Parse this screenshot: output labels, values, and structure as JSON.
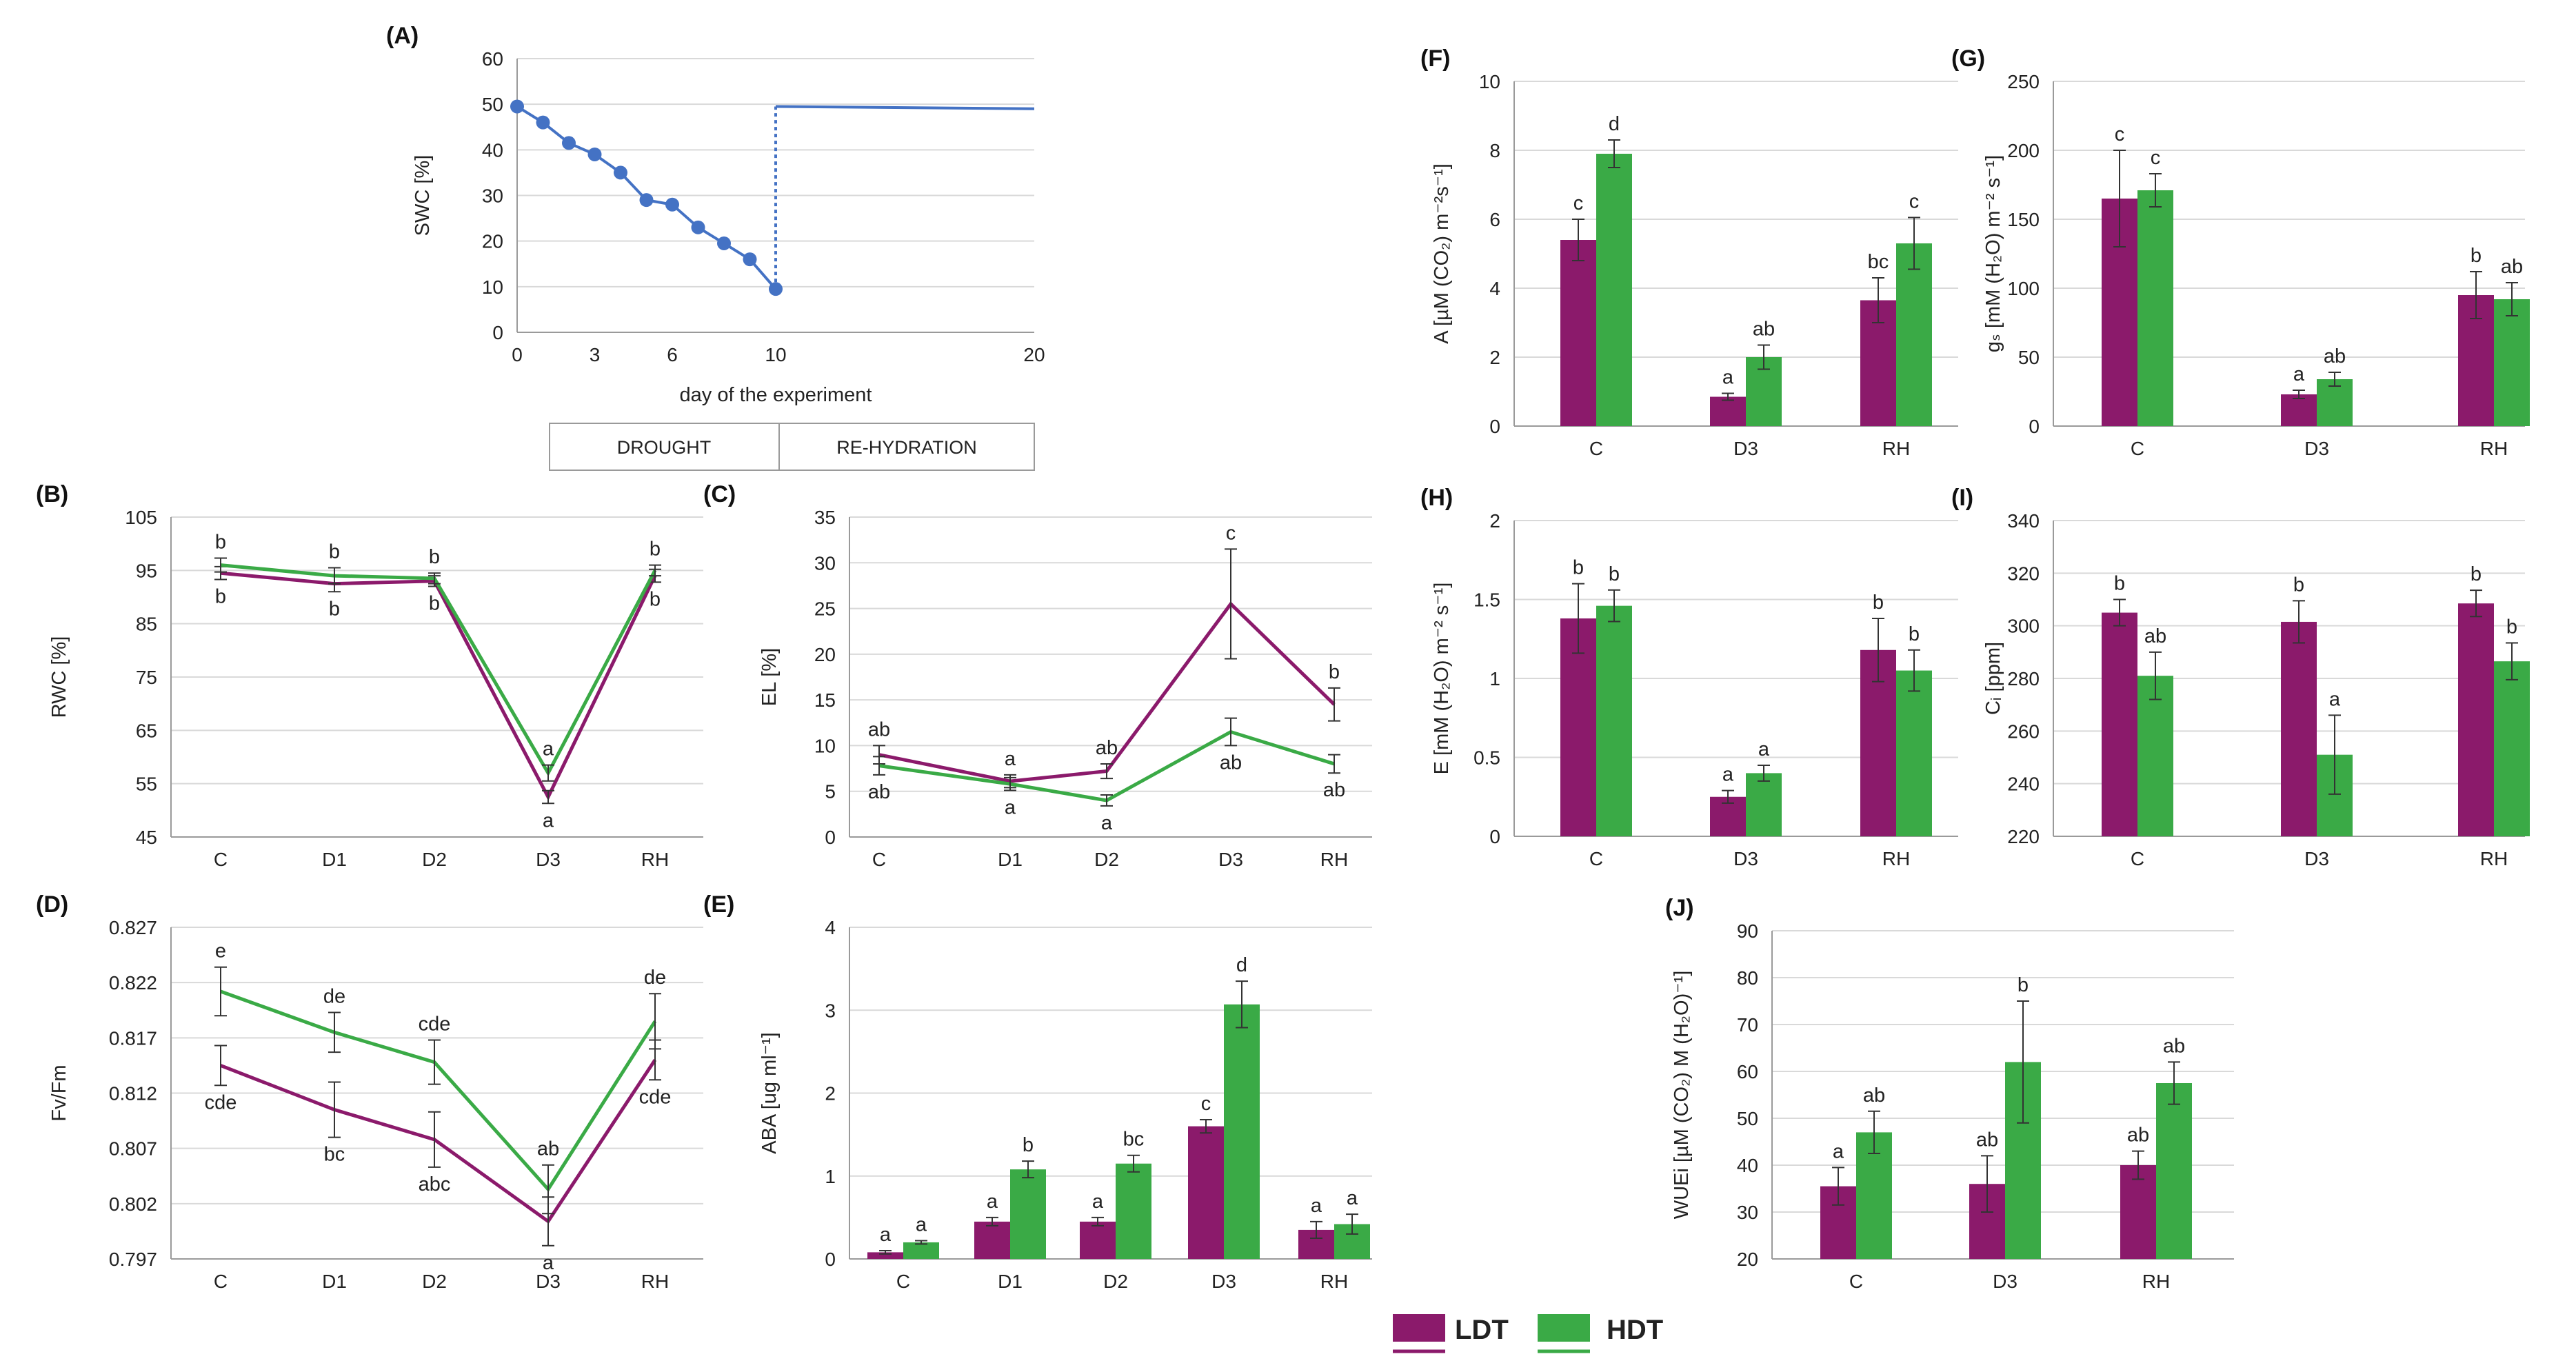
{
  "colors": {
    "ldt": "#8b1a6b",
    "hdt": "#3aaa46",
    "swc": "#4472c4",
    "grid": "#d9d9d9",
    "axis": "#9a9a9a"
  },
  "legend": {
    "ldt": "LDT",
    "hdt": "HDT"
  },
  "phases": {
    "drought": "DROUGHT",
    "rehydration": "RE-HYDRATION"
  },
  "chart_data": [
    {
      "id": "A",
      "panel": "(A)",
      "type": "line",
      "title": "",
      "ylabel": "SWC [%]",
      "xlabel": "day of the experiment",
      "ylim": [
        0,
        60
      ],
      "yticks": [
        0,
        10,
        20,
        30,
        40,
        50,
        60
      ],
      "xlim": [
        0,
        20
      ],
      "xticks": [
        0,
        3,
        6,
        10,
        20
      ],
      "series": [
        {
          "name": "SWC",
          "x": [
            0,
            1,
            2,
            3,
            4,
            5,
            6,
            7,
            8,
            9,
            10
          ],
          "y": [
            49.5,
            46,
            41.5,
            39,
            35,
            29,
            28,
            23,
            19.5,
            16,
            9.5
          ]
        }
      ],
      "rehydration_step": {
        "x": [
          10,
          10
        ],
        "y": [
          9.5,
          49.5
        ]
      },
      "rehydration_line": {
        "x": [
          10,
          20
        ],
        "y": [
          49.5,
          49
        ]
      }
    },
    {
      "id": "B",
      "panel": "(B)",
      "type": "line",
      "ylabel": "RWC [%]",
      "categories": [
        "C",
        "D1",
        "D2",
        "D3",
        "RH"
      ],
      "ylim": [
        45,
        105
      ],
      "yticks": [
        45,
        55,
        65,
        75,
        85,
        95,
        105
      ],
      "series": [
        {
          "name": "LDT",
          "values": [
            94.5,
            92.5,
            93,
            52.5,
            94
          ],
          "err": [
            1.2,
            1.5,
            1,
            1.2,
            1.2
          ]
        },
        {
          "name": "HDT",
          "values": [
            96,
            94,
            93.5,
            57,
            95
          ],
          "err": [
            1.3,
            1.5,
            1,
            1.5,
            1
          ]
        }
      ],
      "letters": {
        "LDT": [
          "b",
          "b",
          "b",
          "a",
          "b"
        ],
        "HDT": [
          "b",
          "b",
          "b",
          "a",
          "b"
        ]
      }
    },
    {
      "id": "C",
      "panel": "(C)",
      "type": "line",
      "ylabel": "EL [%]",
      "categories": [
        "C",
        "D1",
        "D2",
        "D3",
        "RH"
      ],
      "ylim": [
        0,
        35
      ],
      "yticks": [
        0,
        5,
        10,
        15,
        20,
        25,
        30,
        35
      ],
      "series": [
        {
          "name": "LDT",
          "values": [
            9,
            6.1,
            7.2,
            25.5,
            14.5
          ],
          "err": [
            1,
            0.7,
            0.8,
            6,
            1.8
          ]
        },
        {
          "name": "HDT",
          "values": [
            7.8,
            5.8,
            4,
            11.5,
            8
          ],
          "err": [
            1,
            0.7,
            0.6,
            1.5,
            1
          ]
        }
      ],
      "letters": {
        "LDT": [
          "ab",
          "a",
          "ab",
          "c",
          "b"
        ],
        "HDT": [
          "ab",
          "a",
          "a",
          "ab",
          "ab"
        ]
      }
    },
    {
      "id": "D",
      "panel": "(D)",
      "type": "line",
      "ylabel": "Fv/Fm",
      "categories": [
        "C",
        "D1",
        "D2",
        "D3",
        "RH"
      ],
      "ylim": [
        0.797,
        0.827
      ],
      "yticks": [
        0.797,
        0.802,
        0.807,
        0.812,
        0.817,
        0.822,
        0.827
      ],
      "series": [
        {
          "name": "LDT",
          "values": [
            0.8145,
            0.8105,
            0.8078,
            0.8004,
            0.815
          ],
          "err": [
            0.0018,
            0.0025,
            0.0025,
            0.0022,
            0.0018
          ]
        },
        {
          "name": "HDT",
          "values": [
            0.8212,
            0.8175,
            0.8148,
            0.8033,
            0.8185
          ],
          "err": [
            0.0022,
            0.0018,
            0.002,
            0.0022,
            0.0025
          ]
        }
      ],
      "letters": {
        "LDT": [
          "cde",
          "bc",
          "abc",
          "a",
          "cde"
        ],
        "HDT": [
          "e",
          "de",
          "cde",
          "ab",
          "de"
        ]
      }
    },
    {
      "id": "E",
      "panel": "(E)",
      "type": "bar",
      "ylabel": "ABA [ug ml⁻¹]",
      "categories": [
        "C",
        "D1",
        "D2",
        "D3",
        "RH"
      ],
      "ylim": [
        0,
        4
      ],
      "yticks": [
        0,
        1,
        2,
        3,
        4
      ],
      "series": [
        {
          "name": "LDT",
          "values": [
            0.08,
            0.45,
            0.45,
            1.6,
            0.35
          ],
          "err": [
            0.02,
            0.05,
            0.05,
            0.08,
            0.1
          ]
        },
        {
          "name": "HDT",
          "values": [
            0.2,
            1.08,
            1.15,
            3.07,
            0.42
          ],
          "err": [
            0.02,
            0.1,
            0.1,
            0.28,
            0.12
          ]
        }
      ],
      "letters": {
        "LDT": [
          "a",
          "a",
          "a",
          "c",
          "a"
        ],
        "HDT": [
          "a",
          "b",
          "bc",
          "d",
          "a"
        ]
      }
    },
    {
      "id": "F",
      "panel": "(F)",
      "type": "bar",
      "ylabel": "A [µM (CO₂) m⁻²s⁻¹]",
      "categories": [
        "C",
        "D3",
        "RH"
      ],
      "ylim": [
        0,
        10
      ],
      "yticks": [
        0,
        2,
        4,
        6,
        8,
        10
      ],
      "series": [
        {
          "name": "LDT",
          "values": [
            5.4,
            0.85,
            3.65
          ],
          "err": [
            0.6,
            0.1,
            0.65
          ]
        },
        {
          "name": "HDT",
          "values": [
            7.9,
            2,
            5.3
          ],
          "err": [
            0.4,
            0.35,
            0.75
          ]
        }
      ],
      "letters": {
        "LDT": [
          "c",
          "a",
          "bc"
        ],
        "HDT": [
          "d",
          "ab",
          "c"
        ]
      }
    },
    {
      "id": "G",
      "panel": "(G)",
      "type": "bar",
      "ylabel": "gₛ [mM (H₂O) m⁻² s⁻¹]",
      "categories": [
        "C",
        "D3",
        "RH"
      ],
      "ylim": [
        0,
        250
      ],
      "yticks": [
        0,
        50,
        100,
        150,
        200,
        250
      ],
      "series": [
        {
          "name": "LDT",
          "values": [
            165,
            23,
            95
          ],
          "err": [
            35,
            3,
            17
          ]
        },
        {
          "name": "HDT",
          "values": [
            171,
            34,
            92
          ],
          "err": [
            12,
            5,
            12
          ]
        }
      ],
      "letters": {
        "LDT": [
          "c",
          "a",
          "b"
        ],
        "HDT": [
          "c",
          "ab",
          "ab"
        ]
      }
    },
    {
      "id": "H",
      "panel": "(H)",
      "type": "bar",
      "ylabel": "E [mM (H₂O) m⁻² s⁻¹]",
      "categories": [
        "C",
        "D3",
        "RH"
      ],
      "ylim": [
        0,
        2
      ],
      "yticks": [
        "0",
        "0.5",
        "1",
        "1.5",
        "2"
      ],
      "series": [
        {
          "name": "LDT",
          "values": [
            1.38,
            0.25,
            1.18
          ],
          "err": [
            0.22,
            0.04,
            0.2
          ]
        },
        {
          "name": "HDT",
          "values": [
            1.46,
            0.4,
            1.05
          ],
          "err": [
            0.1,
            0.05,
            0.13
          ]
        }
      ],
      "letters": {
        "LDT": [
          "b",
          "a",
          "b"
        ],
        "HDT": [
          "b",
          "a",
          "b"
        ]
      }
    },
    {
      "id": "I",
      "panel": "(I)",
      "type": "bar",
      "ylabel": "Cᵢ [ppm]",
      "categories": [
        "C",
        "D3",
        "RH"
      ],
      "ylim": [
        220,
        340
      ],
      "yticks": [
        220,
        240,
        260,
        280,
        300,
        320,
        340
      ],
      "series": [
        {
          "name": "LDT",
          "values": [
            305,
            301.5,
            308.5
          ],
          "err": [
            5,
            8,
            5
          ]
        },
        {
          "name": "HDT",
          "values": [
            281,
            251,
            286.5
          ],
          "err": [
            9,
            15,
            7
          ]
        }
      ],
      "letters": {
        "LDT": [
          "b",
          "b",
          "b"
        ],
        "HDT": [
          "ab",
          "a",
          "b"
        ]
      }
    },
    {
      "id": "J",
      "panel": "(J)",
      "type": "bar",
      "ylabel": "WUEi [µM (CO₂) M (H₂O)⁻¹]",
      "categories": [
        "C",
        "D3",
        "RH"
      ],
      "ylim": [
        20,
        90
      ],
      "yticks": [
        20,
        30,
        40,
        50,
        60,
        70,
        80,
        90
      ],
      "series": [
        {
          "name": "LDT",
          "values": [
            35.5,
            36,
            40
          ],
          "err": [
            4,
            6,
            3
          ]
        },
        {
          "name": "HDT",
          "values": [
            47,
            62,
            57.5
          ],
          "err": [
            4.5,
            13,
            4.5
          ]
        }
      ],
      "letters": {
        "LDT": [
          "a",
          "ab",
          "ab"
        ],
        "HDT": [
          "ab",
          "b",
          "ab"
        ]
      }
    }
  ]
}
